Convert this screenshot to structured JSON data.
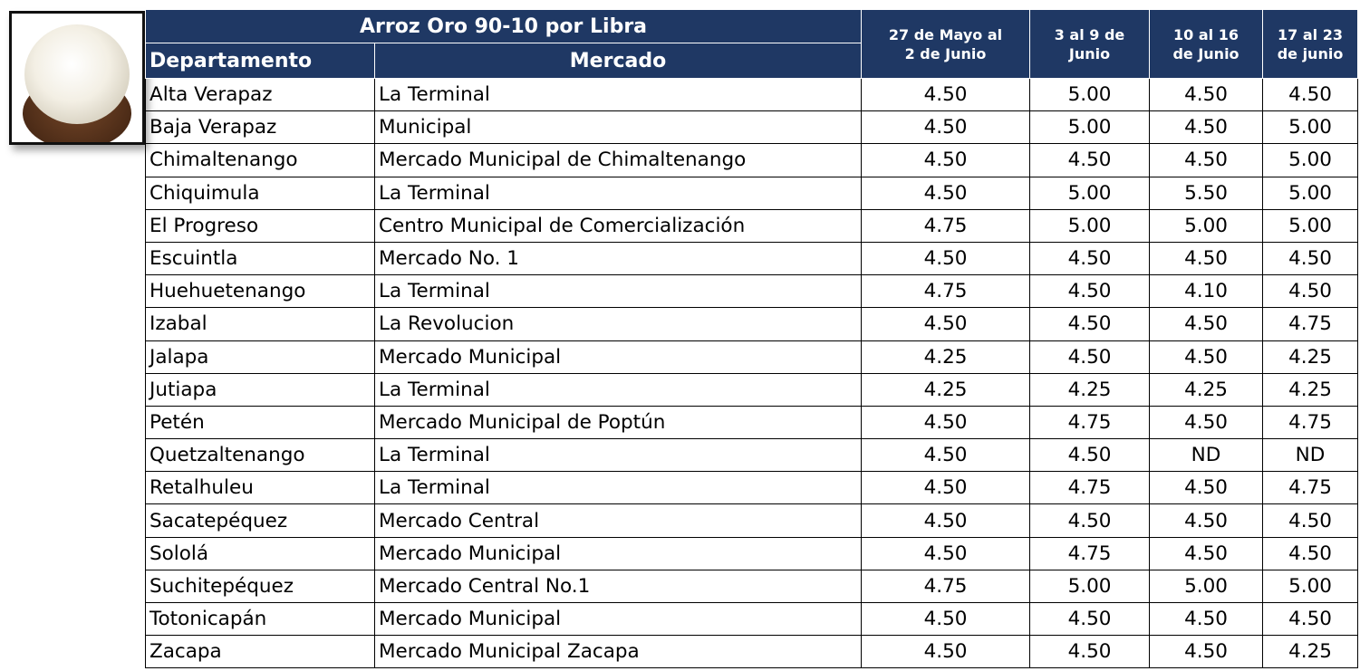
{
  "table": {
    "title": "Arroz Oro 90-10 por Libra",
    "columns": {
      "departamento": "Departamento",
      "mercado": "Mercado"
    },
    "periods": [
      [
        "27 de Mayo al",
        "2 de Junio"
      ],
      [
        "3 al 9 de",
        "Junio"
      ],
      [
        "10 al 16",
        "de Junio"
      ],
      [
        "17 al 23",
        "de junio"
      ]
    ],
    "rows": [
      [
        "Alta Verapaz",
        "La Terminal",
        "4.50",
        "5.00",
        "4.50",
        "4.50"
      ],
      [
        "Baja Verapaz",
        "Municipal",
        "4.50",
        "5.00",
        "4.50",
        "5.00"
      ],
      [
        "Chimaltenango",
        "Mercado Municipal de Chimaltenango",
        "4.50",
        "4.50",
        "4.50",
        "5.00"
      ],
      [
        "Chiquimula",
        "La Terminal",
        "4.50",
        "5.00",
        "5.50",
        "5.00"
      ],
      [
        "El Progreso",
        "Centro Municipal de Comercialización",
        "4.75",
        "5.00",
        "5.00",
        "5.00"
      ],
      [
        "Escuintla",
        "Mercado No. 1",
        "4.50",
        "4.50",
        "4.50",
        "4.50"
      ],
      [
        "Huehuetenango",
        "La Terminal",
        "4.75",
        "4.50",
        "4.10",
        "4.50"
      ],
      [
        "Izabal",
        "La Revolucion",
        "4.50",
        "4.50",
        "4.50",
        "4.75"
      ],
      [
        "Jalapa",
        "Mercado Municipal",
        "4.25",
        "4.50",
        "4.50",
        "4.25"
      ],
      [
        "Jutiapa",
        "La Terminal",
        "4.25",
        "4.25",
        "4.25",
        "4.25"
      ],
      [
        "Petén",
        "Mercado Municipal de Poptún",
        "4.50",
        "4.75",
        "4.50",
        "4.75"
      ],
      [
        "Quetzaltenango",
        "La Terminal",
        "4.50",
        "4.50",
        "ND",
        "ND"
      ],
      [
        "Retalhuleu",
        "La Terminal",
        "4.50",
        "4.75",
        "4.50",
        "4.75"
      ],
      [
        "Sacatepéquez",
        "Mercado Central",
        "4.50",
        "4.50",
        "4.50",
        "4.50"
      ],
      [
        "Sololá",
        "Mercado Municipal",
        "4.50",
        "4.75",
        "4.50",
        "4.50"
      ],
      [
        "Suchitepéquez",
        "Mercado Central No.1",
        "4.75",
        "5.00",
        "5.00",
        "5.00"
      ],
      [
        "Totonicapán",
        "Mercado Municipal",
        "4.50",
        "4.50",
        "4.50",
        "4.50"
      ],
      [
        "Zacapa",
        "Mercado Municipal Zacapa",
        "4.50",
        "4.50",
        "4.50",
        "4.25"
      ]
    ]
  }
}
